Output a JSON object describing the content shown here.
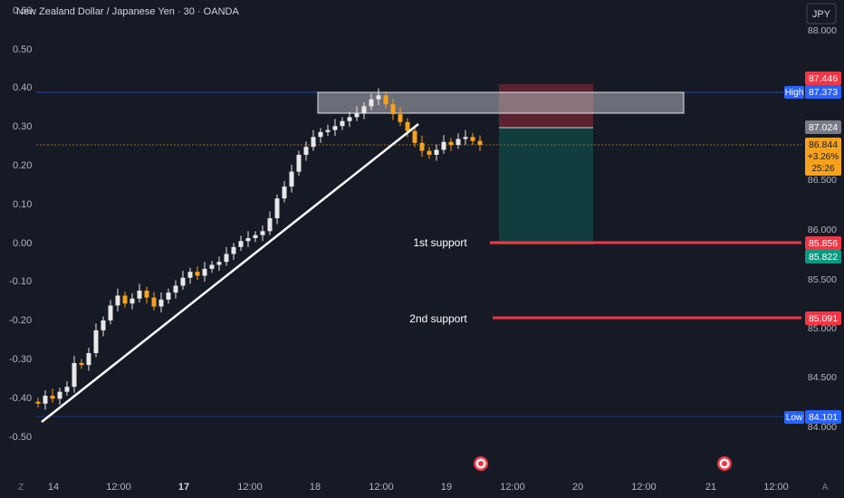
{
  "header": {
    "title": "New Zealand Dollar / Japanese Yen · 30 · OANDA",
    "currency_button": "JPY"
  },
  "left_axis": {
    "labels": [
      "0.60",
      "0.50",
      "0.40",
      "0.30",
      "0.20",
      "0.10",
      "0.00",
      "-0.10",
      "-0.20",
      "-0.30",
      "-0.40",
      "-0.50"
    ]
  },
  "right_axis": {
    "labels": [
      "88.000",
      "86.500",
      "86.000",
      "85.500",
      "85.000",
      "84.500",
      "84.000"
    ]
  },
  "time_axis": {
    "left_badge": "Z",
    "right_badge": "A",
    "labels": [
      "14",
      "12:00",
      "17",
      "12:00",
      "18",
      "12:00",
      "19",
      "12:00",
      "20",
      "12:00",
      "21",
      "12:00"
    ]
  },
  "price_tags": {
    "stop": "87.446",
    "high_label": "High",
    "high": "87.373",
    "entry": "87.024",
    "current_price": "86.844",
    "current_change": "+3.26%",
    "countdown": "25:26",
    "support1": "85.856",
    "target": "85.822",
    "support2": "85.091",
    "low_label": "Low",
    "low": "84.101"
  },
  "annotations": {
    "support1_label": "1st support",
    "support2_label": "2nd support"
  },
  "colors": {
    "background": "#161a25",
    "bull": "#e8e8e8",
    "bear": "#f7a21b",
    "support": "#f23645",
    "stop_zone": "#f23645",
    "target_zone": "#089981",
    "high_tag": "#2962ff",
    "current_tag": "#f7a21b"
  },
  "chart_data": {
    "type": "candlestick",
    "y_axis_right": {
      "min": 83.8,
      "max": 88.2,
      "unit": "JPY"
    },
    "y_axis_left": {
      "min": -0.5,
      "max": 0.6,
      "unit": "%"
    },
    "points": [
      {
        "x": 42,
        "close": 84.23
      },
      {
        "x": 50,
        "close": 84.31
      },
      {
        "x": 58,
        "close": 84.28
      },
      {
        "x": 66,
        "close": 84.35
      },
      {
        "x": 74,
        "close": 84.4
      },
      {
        "x": 82,
        "close": 84.64
      },
      {
        "x": 90,
        "close": 84.62
      },
      {
        "x": 98,
        "close": 84.74
      },
      {
        "x": 106,
        "close": 84.97
      },
      {
        "x": 114,
        "close": 85.07
      },
      {
        "x": 122,
        "close": 85.22
      },
      {
        "x": 130,
        "close": 85.32
      },
      {
        "x": 138,
        "close": 85.24
      },
      {
        "x": 146,
        "close": 85.29
      },
      {
        "x": 154,
        "close": 85.37
      },
      {
        "x": 162,
        "close": 85.3
      },
      {
        "x": 170,
        "close": 85.21
      },
      {
        "x": 178,
        "close": 85.28
      },
      {
        "x": 186,
        "close": 85.35
      },
      {
        "x": 194,
        "close": 85.42
      },
      {
        "x": 202,
        "close": 85.5
      },
      {
        "x": 210,
        "close": 85.56
      },
      {
        "x": 218,
        "close": 85.52
      },
      {
        "x": 226,
        "close": 85.59
      },
      {
        "x": 234,
        "close": 85.63
      },
      {
        "x": 242,
        "close": 85.66
      },
      {
        "x": 250,
        "close": 85.74
      },
      {
        "x": 258,
        "close": 85.81
      },
      {
        "x": 266,
        "close": 85.87
      },
      {
        "x": 274,
        "close": 85.9
      },
      {
        "x": 282,
        "close": 85.93
      },
      {
        "x": 290,
        "close": 85.97
      },
      {
        "x": 298,
        "close": 86.1
      },
      {
        "x": 306,
        "close": 86.3
      },
      {
        "x": 314,
        "close": 86.42
      },
      {
        "x": 322,
        "close": 86.57
      },
      {
        "x": 330,
        "close": 86.74
      },
      {
        "x": 338,
        "close": 86.82
      },
      {
        "x": 346,
        "close": 86.92
      },
      {
        "x": 354,
        "close": 86.97
      },
      {
        "x": 362,
        "close": 86.99
      },
      {
        "x": 370,
        "close": 87.03
      },
      {
        "x": 378,
        "close": 87.08
      },
      {
        "x": 386,
        "close": 87.12
      },
      {
        "x": 394,
        "close": 87.16
      },
      {
        "x": 402,
        "close": 87.23
      },
      {
        "x": 410,
        "close": 87.3
      },
      {
        "x": 418,
        "close": 87.34
      },
      {
        "x": 426,
        "close": 87.25
      },
      {
        "x": 434,
        "close": 87.15
      },
      {
        "x": 442,
        "close": 87.07
      },
      {
        "x": 450,
        "close": 86.98
      },
      {
        "x": 458,
        "close": 86.86
      },
      {
        "x": 466,
        "close": 86.78
      },
      {
        "x": 474,
        "close": 86.74
      },
      {
        "x": 482,
        "close": 86.79
      },
      {
        "x": 490,
        "close": 86.87
      },
      {
        "x": 498,
        "close": 86.84
      },
      {
        "x": 506,
        "close": 86.9
      },
      {
        "x": 514,
        "close": 86.92
      },
      {
        "x": 522,
        "close": 86.88
      },
      {
        "x": 530,
        "close": 86.84
      }
    ]
  }
}
